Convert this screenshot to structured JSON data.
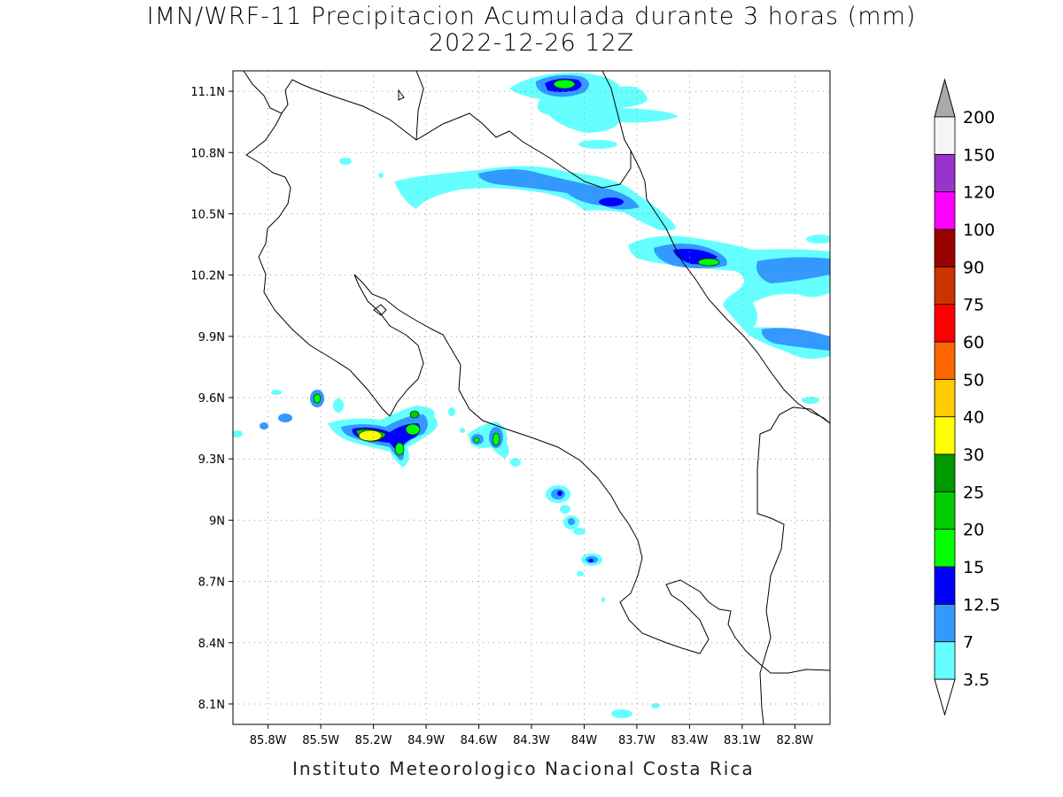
{
  "title": {
    "line1": "IMN/WRF-11 Precipitacion Acumulada durante 3 horas (mm)",
    "line2": "2022-12-26 12Z"
  },
  "footer": "Instituto Meteorologico Nacional Costa Rica",
  "map": {
    "lon_min": -86.0,
    "lon_max": -82.6,
    "lat_min": 8.0,
    "lat_max": 11.2,
    "lon_ticks": [
      {
        "value": -85.8,
        "label": "85.8W"
      },
      {
        "value": -85.5,
        "label": "85.5W"
      },
      {
        "value": -85.2,
        "label": "85.2W"
      },
      {
        "value": -84.9,
        "label": "84.9W"
      },
      {
        "value": -84.6,
        "label": "84.6W"
      },
      {
        "value": -84.3,
        "label": "84.3W"
      },
      {
        "value": -84.0,
        "label": "84W"
      },
      {
        "value": -83.7,
        "label": "83.7W"
      },
      {
        "value": -83.4,
        "label": "83.4W"
      },
      {
        "value": -83.1,
        "label": "83.1W"
      },
      {
        "value": -82.8,
        "label": "82.8W"
      }
    ],
    "lat_ticks": [
      {
        "value": 11.1,
        "label": "11.1N"
      },
      {
        "value": 10.8,
        "label": "10.8N"
      },
      {
        "value": 10.5,
        "label": "10.5N"
      },
      {
        "value": 10.2,
        "label": "10.2N"
      },
      {
        "value": 9.9,
        "label": "9.9N"
      },
      {
        "value": 9.6,
        "label": "9.6N"
      },
      {
        "value": 9.3,
        "label": "9.3N"
      },
      {
        "value": 9.0,
        "label": "9N"
      },
      {
        "value": 8.7,
        "label": "8.7N"
      },
      {
        "value": 8.4,
        "label": "8.4N"
      },
      {
        "value": 8.1,
        "label": "8.1N"
      }
    ],
    "grid": true
  },
  "legend": {
    "units": "mm",
    "levels": [
      {
        "label": "3.5",
        "color": "#66ffff"
      },
      {
        "label": "7",
        "color": "#3399ff"
      },
      {
        "label": "12.5",
        "color": "#0000ff"
      },
      {
        "label": "15",
        "color": "#00ff00"
      },
      {
        "label": "20",
        "color": "#00cc00"
      },
      {
        "label": "25",
        "color": "#009900"
      },
      {
        "label": "30",
        "color": "#ffff00"
      },
      {
        "label": "40",
        "color": "#ffcc00"
      },
      {
        "label": "50",
        "color": "#ff6600"
      },
      {
        "label": "60",
        "color": "#ff0000"
      },
      {
        "label": "75",
        "color": "#cc3300"
      },
      {
        "label": "90",
        "color": "#990000"
      },
      {
        "label": "100",
        "color": "#ff00ff"
      },
      {
        "label": "120",
        "color": "#9933cc"
      },
      {
        "label": "150",
        "color": "#f5f5f5"
      },
      {
        "label": "200",
        "color": null
      }
    ],
    "overflow_color": "#aaaaaa"
  },
  "precipitation_cells": [
    {
      "lon": -84.05,
      "lat": 11.22,
      "level": "15"
    },
    {
      "lon": -83.72,
      "lat": 11.12,
      "level": "3.5"
    },
    {
      "lon": -84.65,
      "lat": 10.78,
      "level": "3.5"
    },
    {
      "lon": -83.85,
      "lat": 10.66,
      "level": "12.5"
    },
    {
      "lon": -83.25,
      "lat": 10.33,
      "level": "15"
    },
    {
      "lon": -82.85,
      "lat": 10.25,
      "level": "7"
    },
    {
      "lon": -82.8,
      "lat": 9.95,
      "level": "7"
    },
    {
      "lon": -85.15,
      "lat": 9.48,
      "level": "30"
    },
    {
      "lon": -84.98,
      "lat": 9.52,
      "level": "20"
    },
    {
      "lon": -84.42,
      "lat": 9.45,
      "level": "20"
    },
    {
      "lon": -84.55,
      "lat": 9.44,
      "level": "7"
    },
    {
      "lon": -84.1,
      "lat": 9.17,
      "level": "7"
    },
    {
      "lon": -84.0,
      "lat": 9.05,
      "level": "7"
    },
    {
      "lon": -83.92,
      "lat": 8.83,
      "level": "12.5"
    },
    {
      "lon": -85.48,
      "lat": 9.66,
      "level": "7"
    },
    {
      "lon": -85.8,
      "lat": 9.51,
      "level": "3.5"
    },
    {
      "lon": -83.75,
      "lat": 8.04,
      "level": "3.5"
    }
  ]
}
